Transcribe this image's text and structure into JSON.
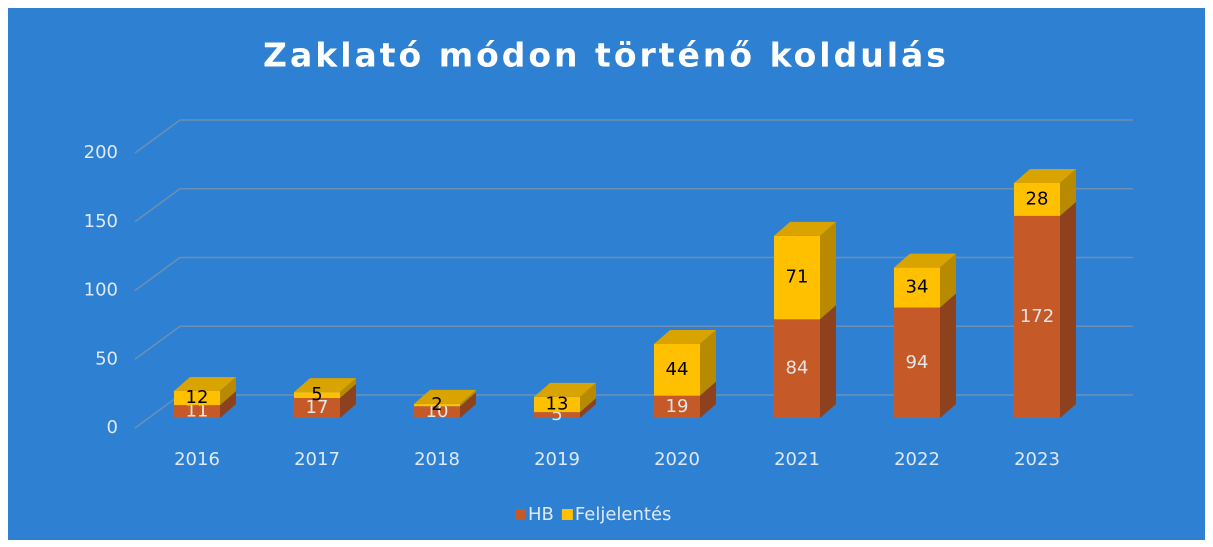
{
  "chart_data": {
    "type": "bar3d_stacked",
    "title": "Zaklató módon történő koldulás",
    "categories": [
      "2016",
      "2017",
      "2018",
      "2019",
      "2020",
      "2021",
      "2022",
      "2023"
    ],
    "series": [
      {
        "name": "HB",
        "color": "#c55a28",
        "values": [
          11,
          17,
          10,
          5,
          19,
          84,
          94,
          172
        ]
      },
      {
        "name": "Feljelentés",
        "color": "#ffc000",
        "values": [
          12,
          5,
          2,
          13,
          44,
          71,
          34,
          28
        ]
      }
    ],
    "ylim": [
      0,
      200
    ],
    "yticks": [
      0,
      50,
      100,
      150,
      200
    ],
    "grid": true,
    "legend": "bottom"
  }
}
